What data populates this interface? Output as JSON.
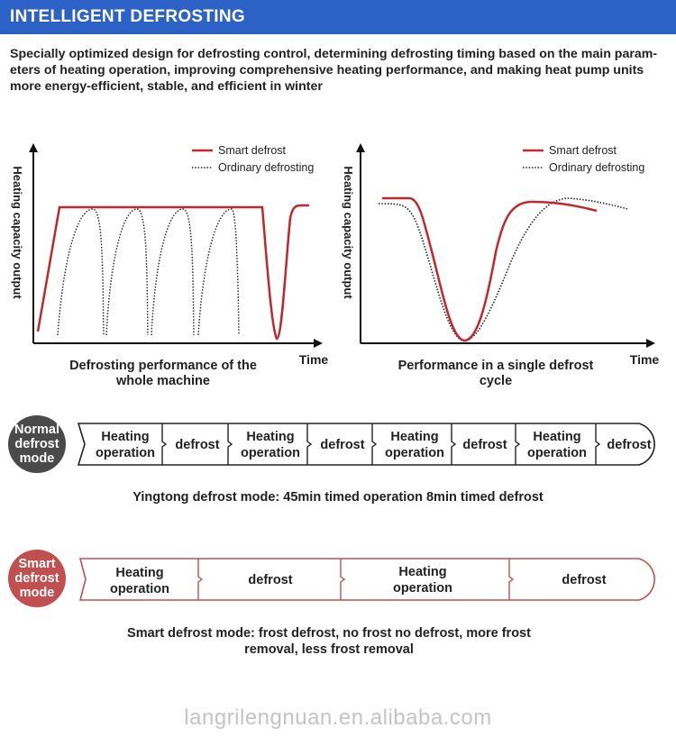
{
  "header": {
    "title": "INTELLIGENT DEFROSTING"
  },
  "intro_text": "Specially optimized design for defrosting control, determining defrosting timing based on the main param-eters of heating operation, improving comprehensive heating performance, and making heat pump units more energy-efficient, stable, and efficient in winter",
  "colors": {
    "header": "#2c62c6",
    "smart": "#c0282e",
    "normal_badge": "#4a4a4a",
    "smart_badge": "#c05050"
  },
  "charts": {
    "left": {
      "ylabel": "Heating capacity output",
      "xlabel": "Time",
      "legend": [
        "Smart defrost",
        "Ordinary defrosting"
      ],
      "caption_line1": "Defrosting performance of the",
      "caption_line2": "whole machine"
    },
    "right": {
      "ylabel": "Heating capacity output",
      "xlabel": "Time",
      "legend": [
        "Smart defrost",
        "Ordinary defrosting"
      ],
      "caption_line1": "Performance in a single defrost",
      "caption_line2": "cycle"
    }
  },
  "normal_mode": {
    "badge": [
      "Normal",
      "defrost",
      "mode"
    ],
    "segments": [
      {
        "line1": "Heating",
        "line2": "operation"
      },
      {
        "line1": "defrost",
        "line2": ""
      },
      {
        "line1": "Heating",
        "line2": "operation"
      },
      {
        "line1": "defrost",
        "line2": ""
      },
      {
        "line1": "Heating",
        "line2": "operation"
      },
      {
        "line1": "defrost",
        "line2": ""
      },
      {
        "line1": "Heating",
        "line2": "operation"
      },
      {
        "line1": "defrost",
        "line2": ""
      }
    ],
    "description": "Yingtong defrost mode: 45min timed operation 8min timed defrost"
  },
  "smart_mode": {
    "badge": [
      "Smart",
      "defrost",
      "mode"
    ],
    "segments": [
      {
        "line1": "Heating",
        "line2": "operation"
      },
      {
        "line1": "defrost",
        "line2": ""
      },
      {
        "line1": "Heating",
        "line2": "operation"
      },
      {
        "line1": "defrost",
        "line2": ""
      }
    ],
    "description_line1": "Smart defrost mode: frost defrost, no frost no defrost, more frost",
    "description_line2": "removal, less frost removal"
  },
  "watermark": "langrilengnuan.en.alibaba.com"
}
